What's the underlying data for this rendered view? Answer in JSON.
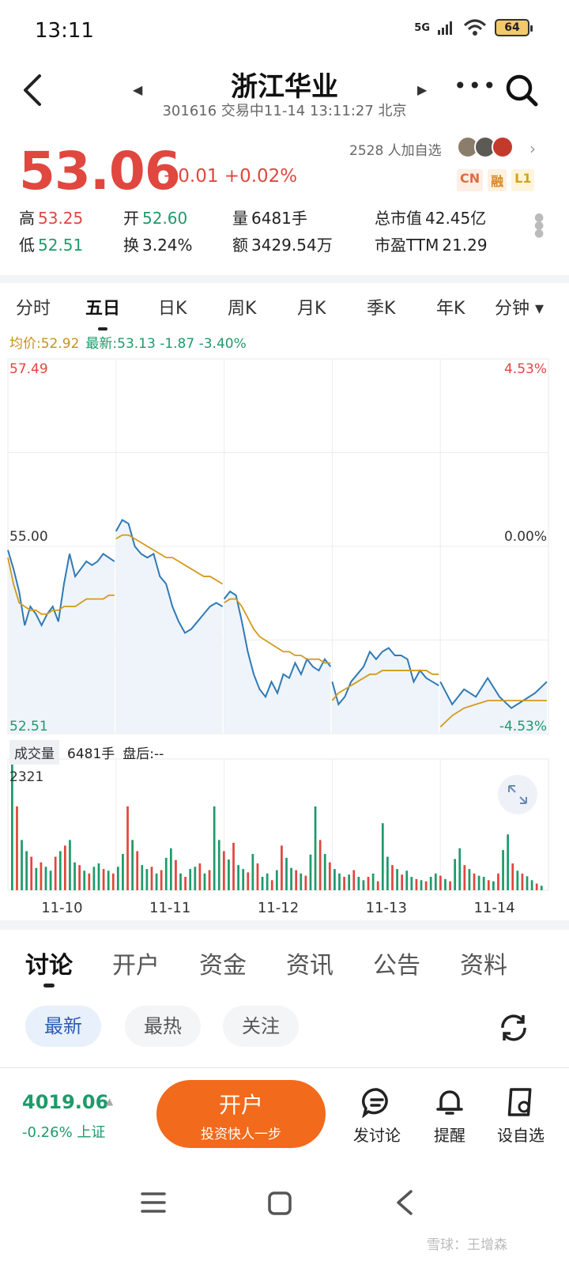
{
  "status": {
    "time": "13:11",
    "network": "5G",
    "battery": "64"
  },
  "header": {
    "title": "浙江华业",
    "subtitle": "301616 交易中11-14 13:11:27 北京"
  },
  "quote": {
    "price": "53.06",
    "change": "+0.01 +0.02%",
    "watchers": "2528 人加自选",
    "badges": [
      "CN",
      "融",
      "L1"
    ],
    "stats": {
      "high_label": "高",
      "high": "53.25",
      "low_label": "低",
      "low": "52.51",
      "open_label": "开",
      "open": "52.60",
      "turnover_label": "换",
      "turnover": "3.24%",
      "volume_label": "量",
      "volume": "6481手",
      "amount_label": "额",
      "amount": "3429.54万",
      "mktcap_label": "总市值",
      "mktcap": "42.45亿",
      "pe_label": "市盈TTM",
      "pe": "21.29"
    }
  },
  "period_tabs": [
    "分时",
    "五日",
    "日K",
    "周K",
    "月K",
    "季K",
    "年K",
    "分钟 ▾"
  ],
  "legend": {
    "avg": "均价:52.92",
    "last": "最新:53.13 -1.87 -3.40%"
  },
  "axis": {
    "y_top": "57.49",
    "y_mid": "55.00",
    "y_bottom": "52.51",
    "pct_top": "4.53%",
    "pct_mid": "0.00%",
    "pct_bottom": "-4.53%",
    "vol_max": "2321"
  },
  "volume_header": {
    "label": "成交量",
    "value": "6481手",
    "after": "盘后:--"
  },
  "chart_data": {
    "type": "line",
    "title": "",
    "x_labels": [
      "11-10",
      "11-11",
      "11-12",
      "11-13",
      "11-14"
    ],
    "ylim": [
      52.51,
      57.49
    ],
    "prev_close": 55.0,
    "series": [
      {
        "name": "",
        "days": [
          [
            54.95,
            54.7,
            54.4,
            53.95,
            54.2,
            54.1,
            53.95,
            54.1,
            54.2,
            54.0,
            54.5,
            54.9,
            54.6,
            54.7,
            54.8,
            54.75,
            54.8,
            54.9,
            54.85,
            54.8
          ],
          [
            55.2,
            55.35,
            55.3,
            55.0,
            54.9,
            54.85,
            54.9,
            54.6,
            54.5,
            54.2,
            54.0,
            53.85,
            53.9,
            54.0,
            54.1,
            54.2,
            54.25,
            54.2
          ],
          [
            54.3,
            54.4,
            54.35,
            54.0,
            53.6,
            53.3,
            53.1,
            53.0,
            53.2,
            53.05,
            53.3,
            53.25,
            53.45,
            53.3,
            53.5,
            53.4,
            53.35,
            53.5,
            53.4
          ],
          [
            53.2,
            52.9,
            53.0,
            53.2,
            53.3,
            53.4,
            53.6,
            53.5,
            53.6,
            53.65,
            53.55,
            53.55,
            53.5,
            53.2,
            53.35,
            53.25,
            53.2,
            53.15
          ],
          [
            53.2,
            52.9,
            53.1,
            53.0,
            53.25,
            53.0,
            52.85,
            52.95,
            53.05,
            53.2
          ]
        ]
      },
      {
        "name": "",
        "days": [
          [
            54.85,
            54.5,
            54.25,
            54.2,
            54.15,
            54.15,
            54.1,
            54.1,
            54.15,
            54.15,
            54.2,
            54.2,
            54.2,
            54.25,
            54.3,
            54.3,
            54.3,
            54.3,
            54.35,
            54.35
          ],
          [
            55.1,
            55.15,
            55.15,
            55.1,
            55.05,
            55.0,
            54.95,
            54.9,
            54.85,
            54.85,
            54.8,
            54.75,
            54.7,
            54.65,
            54.6,
            54.6,
            54.55,
            54.5
          ],
          [
            54.25,
            54.3,
            54.3,
            54.2,
            54.05,
            53.9,
            53.8,
            53.75,
            53.7,
            53.65,
            53.6,
            53.6,
            53.55,
            53.55,
            53.5,
            53.5,
            53.5,
            53.45,
            53.45
          ],
          [
            52.95,
            53.05,
            53.1,
            53.15,
            53.2,
            53.25,
            53.3,
            53.3,
            53.35,
            53.35,
            53.35,
            53.35,
            53.35,
            53.35,
            53.35,
            53.35,
            53.3,
            53.3
          ],
          [
            52.6,
            52.75,
            52.85,
            52.9,
            52.95,
            52.95,
            52.95,
            52.95,
            52.95,
            52.95
          ]
        ]
      }
    ],
    "volume": [
      2321,
      1500,
      900,
      700,
      600,
      400,
      500,
      420,
      350,
      600,
      700,
      800,
      900,
      500,
      450,
      350,
      300,
      420,
      480,
      380,
      350,
      300,
      420,
      650,
      1500,
      900,
      700,
      450,
      380,
      420,
      300,
      360,
      580,
      750,
      540,
      300,
      240,
      380,
      420,
      480,
      300,
      360,
      1500,
      900,
      700,
      550,
      850,
      450,
      380,
      320,
      650,
      480,
      240,
      300,
      180,
      360,
      800,
      580,
      400,
      360,
      300,
      260,
      640,
      1500,
      900,
      650,
      500,
      380,
      300,
      240,
      280,
      360,
      240,
      180,
      240,
      300,
      160,
      1200,
      600,
      450,
      380,
      280,
      350,
      240,
      200,
      180,
      160,
      240,
      300,
      260,
      200,
      160,
      560,
      750,
      450,
      380,
      300,
      260,
      240,
      180,
      160,
      300,
      720,
      1000,
      480,
      350,
      300,
      250,
      180,
      120,
      80
    ]
  },
  "content_tabs": [
    "讨论",
    "开户",
    "资金",
    "资讯",
    "公告",
    "资料"
  ],
  "filters": [
    "最新",
    "最热",
    "关注"
  ],
  "bottom": {
    "index_value": "4019.06",
    "index_change": "-0.26% 上证",
    "open_label": "开户",
    "open_sub": "投资快人一步",
    "actions": [
      "发讨论",
      "提醒",
      "设自选"
    ]
  },
  "watermark": "雪球：王增森",
  "colors": {
    "up": "#e0473f",
    "down": "#1f9a6b",
    "price_line": "#2f7ab5",
    "avg_line": "#d39a1d",
    "accent": "#f26a1b"
  }
}
